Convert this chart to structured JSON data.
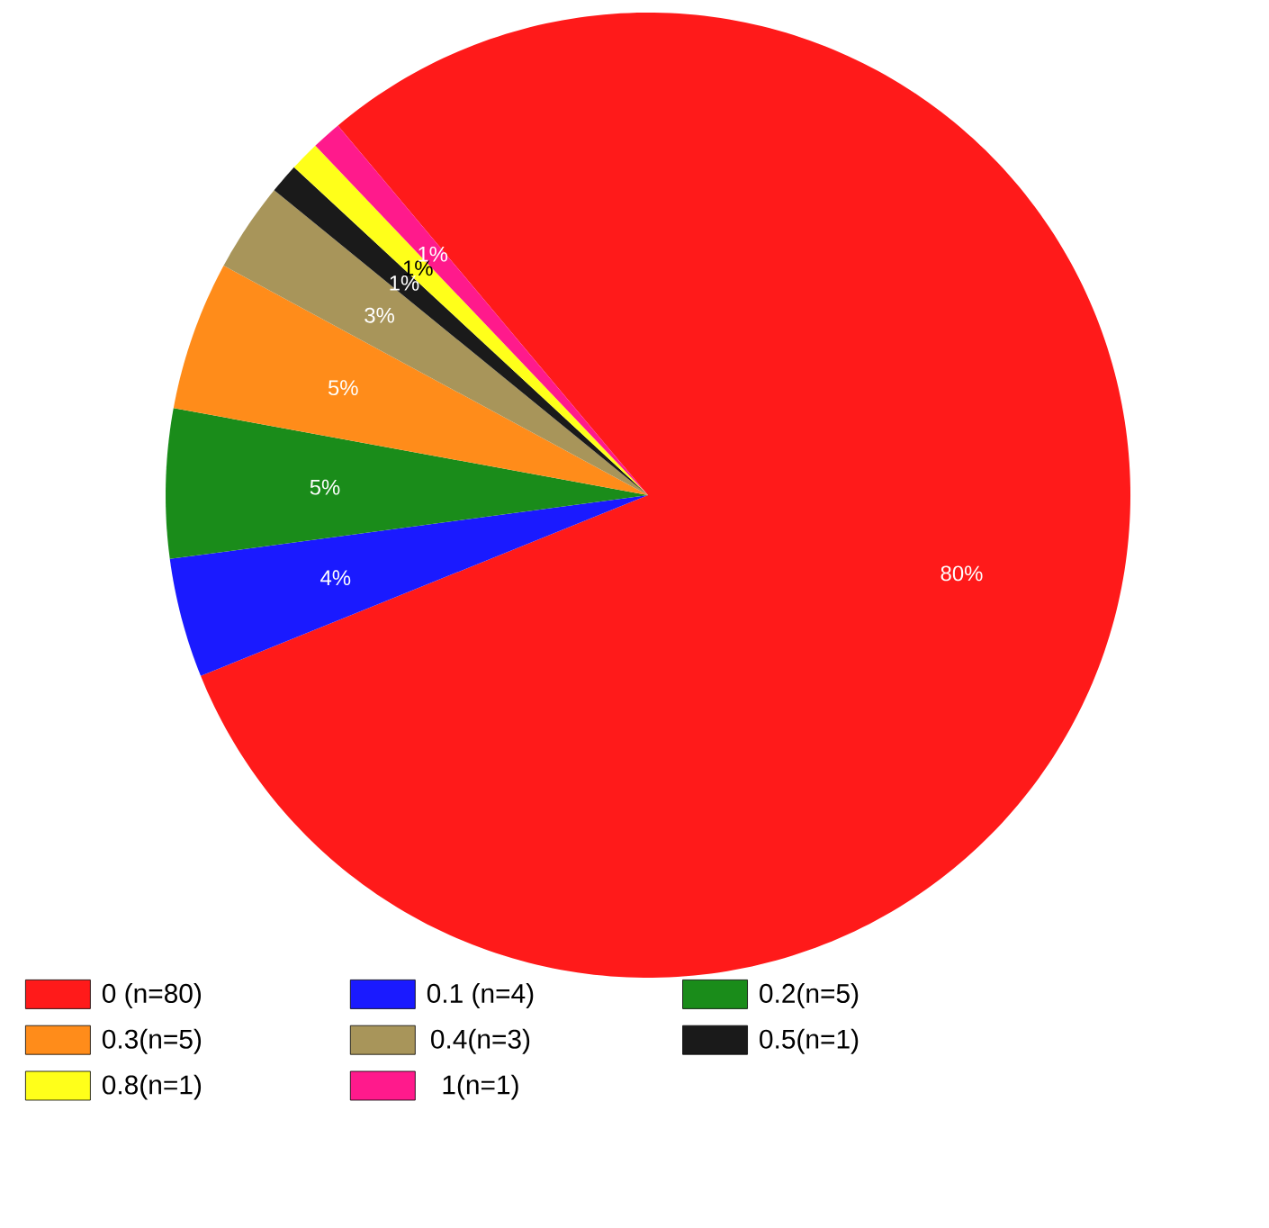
{
  "chart_data": {
    "type": "pie",
    "categories": [
      "0 (n=80)",
      "0.1 (n=4)",
      "0.2(n=5)",
      "0.3(n=5)",
      "0.4(n=3)",
      "0.5(n=1)",
      "0.8(n=1)",
      "1(n=1)"
    ],
    "values": [
      80,
      4,
      5,
      5,
      3,
      1,
      1,
      1
    ],
    "value_labels": [
      "80%",
      "4%",
      "5%",
      "5%",
      "3%",
      "1%",
      "1%",
      "1%"
    ],
    "colors": [
      "#ff1a1a",
      "#1a1aff",
      "#1a8c1a",
      "#ff8c1a",
      "#a8955a",
      "#1a1a1a",
      "#ffff1a",
      "#ff1a8c"
    ],
    "legend": "bottom"
  }
}
